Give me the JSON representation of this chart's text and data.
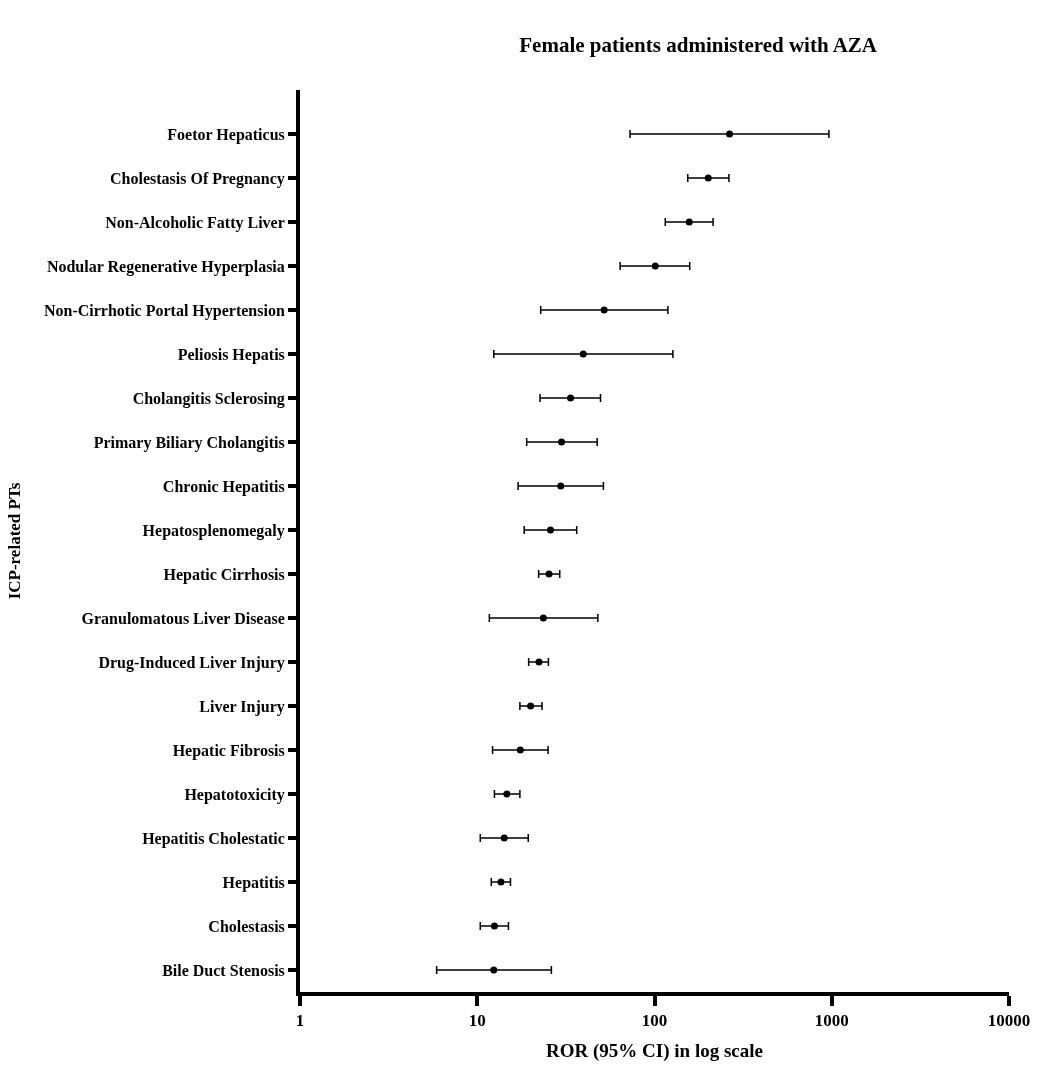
{
  "chart_data": {
    "type": "scatter",
    "orientation": "horizontal",
    "title": "Female patients administered with AZA",
    "xlabel": "ROR (95% CI) in log scale",
    "ylabel": "ICP-related PTs",
    "categories": [
      "Foetor Hepaticus",
      "Cholestasis Of Pregnancy",
      "Non-Alcoholic Fatty Liver",
      "Nodular Regenerative Hyperplasia",
      "Non-Cirrhotic Portal Hypertension",
      "Peliosis Hepatis",
      "Cholangitis Sclerosing",
      "Primary Biliary Cholangitis",
      "Chronic Hepatitis",
      "Hepatosplenomegaly",
      "Hepatic Cirrhosis",
      "Granulomatous Liver Disease",
      "Drug-Induced Liver Injury",
      "Liver Injury",
      "Hepatic Fibrosis",
      "Hepatotoxicity",
      "Hepatitis Cholestatic",
      "Hepatitis",
      "Cholestasis",
      "Bile Duct Stenosis"
    ],
    "values": [
      265,
      201,
      157,
      101,
      52,
      39.6,
      33.6,
      29.9,
      29.6,
      25.9,
      25.4,
      23.6,
      22.3,
      20.0,
      17.5,
      14.7,
      14.2,
      13.6,
      12.5,
      12.4
    ],
    "errors": [
      [
        72.8,
        964
      ],
      [
        154,
        263
      ],
      [
        115,
        214
      ],
      [
        64,
        158
      ],
      [
        22.8,
        119
      ],
      [
        12.4,
        127
      ],
      [
        22.6,
        49.6
      ],
      [
        19.0,
        47.5
      ],
      [
        17.0,
        51.5
      ],
      [
        18.4,
        36.4
      ],
      [
        22.2,
        29.2
      ],
      [
        11.7,
        47.9
      ],
      [
        19.5,
        25.2
      ],
      [
        17.4,
        23.2
      ],
      [
        12.2,
        25.1
      ],
      [
        12.5,
        17.4
      ],
      [
        10.4,
        19.4
      ],
      [
        12.0,
        15.4
      ],
      [
        10.4,
        15.0
      ],
      [
        5.9,
        26.2
      ]
    ],
    "color": "#000000",
    "marker": "circle",
    "log": "x",
    "xlim": [
      1,
      10000
    ],
    "xticks": [
      1,
      10,
      100,
      1000,
      10000
    ]
  }
}
